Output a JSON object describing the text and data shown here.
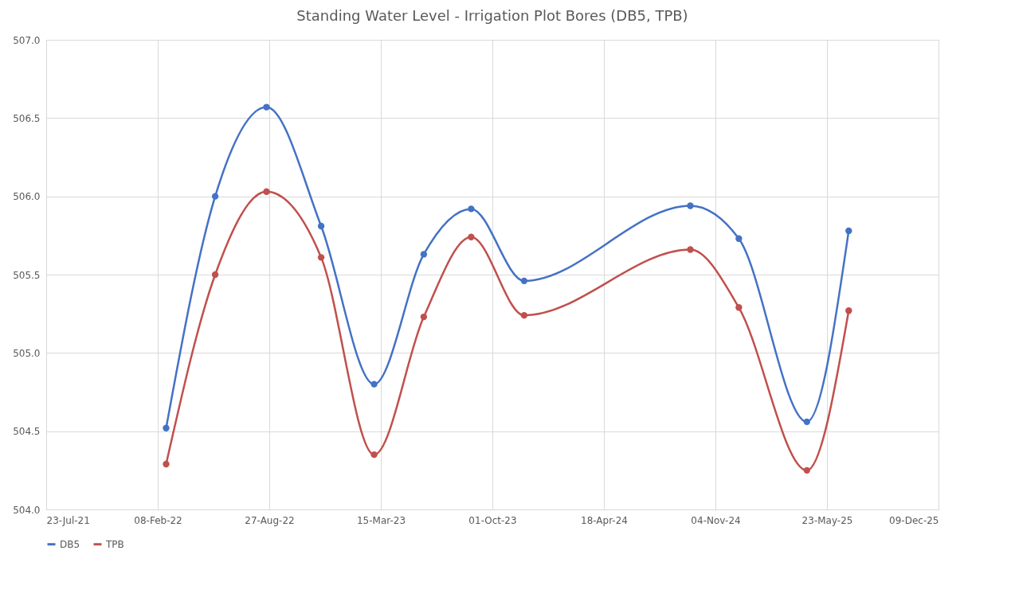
{
  "chart_data": {
    "type": "line",
    "title": "Standing Water Level - Irrigation Plot Bores (DB5, TPB)",
    "x": [
      "2022-02-23",
      "2022-05-22",
      "2022-08-22",
      "2022-11-28",
      "2023-03-03",
      "2023-05-31",
      "2023-08-24",
      "2023-11-27",
      "2024-09-20",
      "2024-12-16",
      "2025-04-17",
      "2025-07-01"
    ],
    "series": [
      {
        "name": "DB5",
        "color": "#4472c4",
        "values": [
          504.52,
          506.0,
          506.57,
          505.81,
          504.8,
          505.63,
          505.92,
          505.46,
          505.94,
          505.73,
          504.56,
          505.78
        ]
      },
      {
        "name": "TPB",
        "color": "#c0504d",
        "values": [
          504.29,
          505.5,
          506.03,
          505.61,
          504.35,
          505.23,
          505.74,
          505.24,
          505.66,
          505.29,
          504.25,
          505.27
        ]
      }
    ],
    "xlim": [
      "2021-07-23",
      "2025-12-09"
    ],
    "xticks": [
      {
        "value": "2021-07-23",
        "label": "23-Jul-21"
      },
      {
        "value": "2022-02-08",
        "label": "08-Feb-22"
      },
      {
        "value": "2022-08-27",
        "label": "27-Aug-22"
      },
      {
        "value": "2023-03-15",
        "label": "15-Mar-23"
      },
      {
        "value": "2023-10-01",
        "label": "01-Oct-23"
      },
      {
        "value": "2024-04-18",
        "label": "18-Apr-24"
      },
      {
        "value": "2024-11-04",
        "label": "04-Nov-24"
      },
      {
        "value": "2025-05-23",
        "label": "23-May-25"
      },
      {
        "value": "2025-12-09",
        "label": "09-Dec-25"
      }
    ],
    "ylim": [
      504.0,
      507.0
    ],
    "yticks": [
      {
        "value": 504.0,
        "label": "504.0"
      },
      {
        "value": 504.5,
        "label": "504.5"
      },
      {
        "value": 505.0,
        "label": "505.0"
      },
      {
        "value": 505.5,
        "label": "505.5"
      },
      {
        "value": 506.0,
        "label": "506.0"
      },
      {
        "value": 506.5,
        "label": "506.5"
      },
      {
        "value": 507.0,
        "label": "507.0"
      }
    ],
    "grid": true,
    "legend": "bottom",
    "marker": "circle",
    "line_style": "solid"
  }
}
